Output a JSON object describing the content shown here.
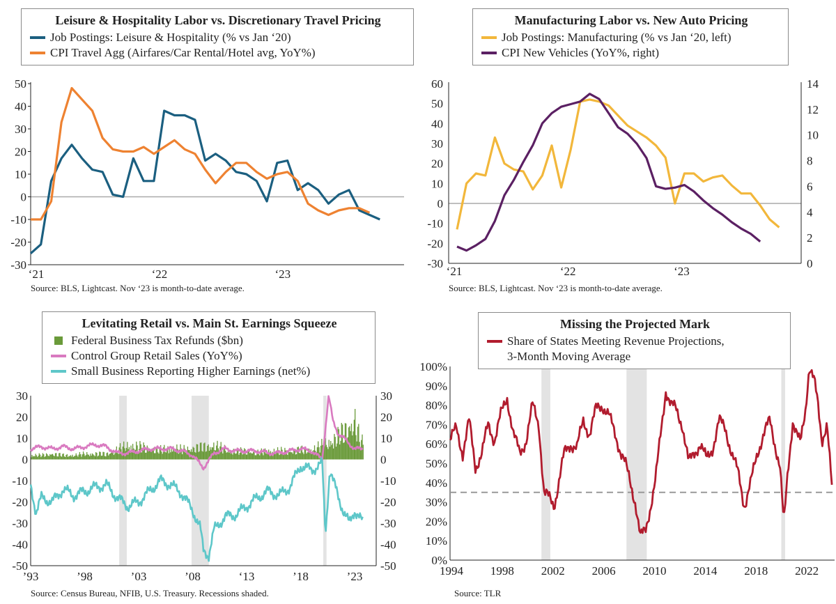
{
  "chart_data": [
    {
      "type": "line",
      "title": "Leisure & Hospitality Labor vs. Discretionary Travel Pricing",
      "ylim": [
        -30,
        50
      ],
      "yticks": [
        -30,
        -20,
        -10,
        0,
        10,
        20,
        30,
        40,
        50
      ],
      "xticks": [
        {
          "x": 0,
          "label": "‘21"
        },
        {
          "x": 12,
          "label": "‘22"
        },
        {
          "x": 24,
          "label": "‘23"
        }
      ],
      "x": [
        0,
        1,
        2,
        3,
        4,
        5,
        6,
        7,
        8,
        9,
        10,
        11,
        12,
        13,
        14,
        15,
        16,
        17,
        18,
        19,
        20,
        21,
        22,
        23,
        24,
        25,
        26,
        27,
        28,
        29,
        30,
        31,
        32,
        33,
        34
      ],
      "series": [
        {
          "name": "Job Postings: Leisure & Hospitality (% vs Jan ‘20)",
          "color": "#1b5f80",
          "values": [
            -25,
            -21,
            7,
            17,
            23,
            17,
            12,
            11,
            1,
            0,
            17,
            7,
            7,
            38,
            36,
            36,
            34,
            16,
            19,
            16,
            11,
            10,
            7,
            -2,
            15,
            16,
            3,
            6,
            3,
            -3,
            1,
            3,
            -6,
            -8,
            -10
          ]
        },
        {
          "name": "CPI Travel Agg (Airfares/Car Rental/Hotel avg, YoY%)",
          "color": "#ee8231",
          "values": [
            -10,
            -10,
            -2,
            33,
            48,
            43,
            38,
            26,
            21,
            20,
            20,
            22,
            19,
            22,
            25,
            21,
            19,
            12,
            6,
            11,
            15,
            15,
            11,
            8,
            10,
            11,
            7,
            -3,
            -6,
            -8,
            -6,
            -5,
            -5,
            -7,
            null
          ]
        }
      ],
      "source": "Source: BLS, Lightcast. Nov ‘23 is month-to-date average."
    },
    {
      "type": "line",
      "title": "Manufacturing Labor vs. New Auto Pricing",
      "ylim_left": [
        -30,
        60
      ],
      "ylim_right": [
        0,
        14
      ],
      "yticks_left": [
        -30,
        -20,
        -10,
        0,
        10,
        20,
        30,
        40,
        50,
        60
      ],
      "yticks_right": [
        0,
        2,
        4,
        6,
        8,
        10,
        12,
        14
      ],
      "xticks": [
        {
          "x": 0,
          "label": "‘21"
        },
        {
          "x": 12,
          "label": "‘22"
        },
        {
          "x": 24,
          "label": "‘23"
        }
      ],
      "x": [
        0,
        1,
        2,
        3,
        4,
        5,
        6,
        7,
        8,
        9,
        10,
        11,
        12,
        13,
        14,
        15,
        16,
        17,
        18,
        19,
        20,
        21,
        22,
        23,
        24,
        25,
        26,
        27,
        28,
        29,
        30,
        31,
        32,
        33,
        34
      ],
      "series": [
        {
          "name": "Job Postings: Manufacturing (% vs Jan ‘20, left)",
          "color": "#f2b73b",
          "axis": "left",
          "values": [
            -13,
            10,
            15,
            14,
            33,
            20,
            17,
            16,
            7,
            14,
            29,
            8,
            27,
            51,
            52,
            51,
            49,
            44,
            39,
            36,
            33,
            29,
            23,
            0,
            15,
            15,
            11,
            13,
            14,
            9,
            5,
            5,
            -1,
            -8,
            -12
          ]
        },
        {
          "name": "CPI New Vehicles (YoY%, right)",
          "color": "#5b2063",
          "axis": "right",
          "values": [
            1.3,
            1.0,
            1.4,
            1.9,
            3.3,
            5.3,
            6.5,
            7.9,
            9.2,
            10.9,
            11.7,
            12.2,
            12.4,
            12.6,
            13.2,
            12.8,
            11.7,
            10.6,
            10.1,
            9.3,
            8.2,
            6.0,
            5.8,
            5.9,
            6.1,
            5.6,
            4.9,
            4.3,
            3.8,
            3.2,
            2.7,
            2.3,
            1.7,
            null,
            null
          ]
        }
      ],
      "source": "Source: BLS, Lightcast. Nov ‘23 is month-to-date average."
    },
    {
      "type": "line",
      "title": "Levitating Retail vs. Main St. Earnings Squeeze",
      "ylim": [
        -50,
        30
      ],
      "yticks_left": [
        -50,
        -40,
        -30,
        -20,
        -10,
        0,
        10,
        20,
        30
      ],
      "yticks_right": [
        -50,
        -40,
        -30,
        -20,
        -10,
        0,
        10,
        20,
        30
      ],
      "xlim": [
        1993,
        2025
      ],
      "xticks": [
        {
          "x": 1993,
          "label": "’93"
        },
        {
          "x": 1998,
          "label": "’98"
        },
        {
          "x": 2003,
          "label": "’03"
        },
        {
          "x": 2008,
          "label": "’08"
        },
        {
          "x": 2013,
          "label": "‘13"
        },
        {
          "x": 2018,
          "label": "’18"
        },
        {
          "x": 2023,
          "label": "’23"
        }
      ],
      "recessions": [
        [
          2001.2,
          2001.9
        ],
        [
          2007.9,
          2009.5
        ],
        [
          2020.1,
          2020.4
        ]
      ],
      "series": [
        {
          "name": "Federal Business Tax Refunds ($bn)",
          "color": "#6a9a3a",
          "kind": "bar",
          "x": [
            1993,
            1994,
            1995,
            1996,
            1997,
            1998,
            1999,
            2000,
            2001,
            2002,
            2003,
            2004,
            2005,
            2006,
            2007,
            2008,
            2009,
            2010,
            2011,
            2012,
            2013,
            2014,
            2015,
            2016,
            2017,
            2018,
            2019,
            2020,
            2021,
            2022,
            2023,
            2023.5
          ],
          "values": [
            3,
            3,
            4,
            3,
            3,
            4,
            4,
            4,
            7,
            10,
            9,
            8,
            7,
            8,
            7,
            8,
            9,
            10,
            7,
            6,
            6,
            5,
            6,
            6,
            6,
            7,
            7,
            10,
            14,
            20,
            28,
            12
          ]
        },
        {
          "name": "Control Group Retail Sales (YoY%)",
          "color": "#d97ac0",
          "kind": "line",
          "x": [
            1993,
            1994,
            1995,
            1996,
            1997,
            1998,
            1999,
            2000,
            2001,
            2002,
            2003,
            2004,
            2005,
            2006,
            2007,
            2008,
            2009,
            2010,
            2011,
            2012,
            2013,
            2014,
            2015,
            2016,
            2017,
            2018,
            2019,
            2020,
            2020.6,
            2021,
            2021.5,
            2022,
            2023,
            2023.8
          ],
          "values": [
            5,
            6,
            5,
            6,
            5,
            6,
            7,
            6,
            3,
            3,
            4,
            5,
            5,
            5,
            4,
            2,
            -4,
            3,
            5,
            4,
            4,
            4,
            3,
            3,
            4,
            5,
            4,
            0,
            30,
            18,
            12,
            10,
            5,
            5
          ]
        },
        {
          "name": "Small Business Reporting Higher Earnings (net%)",
          "color": "#5ec7c9",
          "kind": "line",
          "x": [
            1993,
            1993.5,
            1994,
            1995,
            1996,
            1997,
            1998,
            1999,
            2000,
            2001,
            2002,
            2003,
            2004,
            2005,
            2006,
            2007,
            2008,
            2008.7,
            2009,
            2009.5,
            2010,
            2011,
            2012,
            2013,
            2014,
            2015,
            2016,
            2017,
            2018,
            2019,
            2020,
            2020.3,
            2020.7,
            2021,
            2022,
            2022.5,
            2023,
            2023.8
          ],
          "values": [
            -12,
            -25,
            -18,
            -20,
            -14,
            -17,
            -15,
            -13,
            -12,
            -18,
            -22,
            -20,
            -15,
            -10,
            -12,
            -16,
            -24,
            -32,
            -43,
            -45,
            -33,
            -27,
            -26,
            -22,
            -18,
            -15,
            -17,
            -13,
            -3,
            -5,
            -2,
            -35,
            -5,
            -10,
            -25,
            -30,
            -24,
            -30
          ]
        }
      ],
      "source": "Source: Census Bureau, NFIB, U.S. Treasury. Recessions shaded."
    },
    {
      "type": "line",
      "title": "Missing the Projected Mark",
      "ylim": [
        0,
        100
      ],
      "yticks": [
        "0%",
        "10%",
        "20%",
        "30%",
        "40%",
        "50%",
        "60%",
        "70%",
        "80%",
        "90%",
        "100%"
      ],
      "xlim": [
        1994,
        2024.3
      ],
      "xticks": [
        "1994",
        "1998",
        "2002",
        "2006",
        "2010",
        "2014",
        "2018",
        "2022"
      ],
      "recessions": [
        [
          2001.2,
          2001.9
        ],
        [
          2007.9,
          2009.5
        ],
        [
          2020.1,
          2020.4
        ]
      ],
      "reference_line": 35,
      "series": [
        {
          "name": "Share of States Meeting Revenue Projections, 3-Month Moving Average",
          "color": "#b11c2e",
          "x": [
            1994,
            1994.5,
            1995,
            1995.5,
            1996,
            1996.5,
            1997,
            1997.5,
            1998,
            1998.5,
            1999,
            1999.5,
            2000,
            2000.5,
            2001,
            2001.4,
            2001.8,
            2002.2,
            2002.7,
            2003,
            2003.5,
            2004,
            2004.5,
            2005,
            2005.5,
            2006,
            2006.5,
            2007,
            2007.5,
            2007.8,
            2008.2,
            2008.6,
            2009,
            2009.4,
            2009.8,
            2010.2,
            2010.6,
            2011,
            2011.4,
            2011.8,
            2012.3,
            2012.8,
            2013.2,
            2013.7,
            2014.2,
            2014.7,
            2015.2,
            2015.7,
            2016.2,
            2016.7,
            2017.2,
            2017.7,
            2018.2,
            2018.7,
            2019.2,
            2019.6,
            2020,
            2020.3,
            2020.6,
            2021,
            2021.3,
            2021.6,
            2022,
            2022.3,
            2022.7,
            2023,
            2023.3,
            2023.7,
            2024.1
          ],
          "values": [
            62,
            68,
            55,
            72,
            48,
            55,
            70,
            62,
            75,
            84,
            65,
            55,
            62,
            80,
            70,
            35,
            32,
            28,
            45,
            55,
            60,
            58,
            72,
            65,
            78,
            80,
            75,
            65,
            55,
            50,
            40,
            30,
            12,
            15,
            28,
            42,
            65,
            88,
            80,
            78,
            70,
            50,
            55,
            60,
            52,
            58,
            72,
            68,
            55,
            45,
            28,
            40,
            55,
            65,
            72,
            60,
            48,
            18,
            45,
            72,
            65,
            60,
            78,
            100,
            92,
            80,
            62,
            70,
            36
          ]
        }
      ],
      "source": "Source: TLR"
    }
  ],
  "legends": {
    "p1": {
      "title": "Leisure & Hospitality Labor vs. Discretionary Travel Pricing",
      "items": [
        "Job Postings: Leisure & Hospitality (% vs Jan ‘20)",
        "CPI Travel Agg (Airfares/Car Rental/Hotel avg, YoY%)"
      ],
      "colors": [
        "#1b5f80",
        "#ee8231"
      ]
    },
    "p2": {
      "title": "Manufacturing Labor vs. New Auto Pricing",
      "items": [
        "Job Postings: Manufacturing (% vs Jan ‘20, left)",
        "CPI New Vehicles (YoY%, right)"
      ],
      "colors": [
        "#f2b73b",
        "#5b2063"
      ]
    },
    "p3": {
      "title": "Levitating Retail vs. Main St. Earnings Squeeze",
      "items": [
        "Federal Business Tax Refunds ($bn)",
        "Control Group Retail Sales (YoY%)",
        "Small Business Reporting Higher Earnings (net%)"
      ],
      "colors": [
        "#6a9a3a",
        "#d97ac0",
        "#5ec7c9"
      ]
    },
    "p4": {
      "title": "Missing the Projected Mark",
      "items": [
        "Share of States Meeting Revenue Projections,",
        "3-Month Moving Average"
      ],
      "colors": [
        "#b11c2e"
      ]
    }
  },
  "sources": {
    "p1": "Source: BLS, Lightcast. Nov ‘23 is month-to-date average.",
    "p2": "Source: BLS, Lightcast. Nov ‘23 is month-to-date average.",
    "p3": "Source: Census Bureau, NFIB, U.S. Treasury. Recessions shaded.",
    "p4": "Source: TLR"
  }
}
